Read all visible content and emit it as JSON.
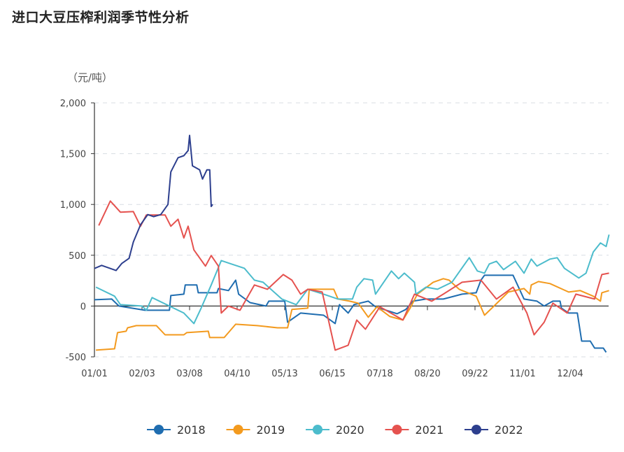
{
  "chart_data": {
    "type": "line",
    "title": "进口大豆压榨利润季节性分析",
    "ylabel": "（元/吨）",
    "xlabel": "",
    "ylim": [
      -500,
      2000
    ],
    "yticks": [
      "2,000",
      "1,500",
      "1,000",
      "500",
      "0",
      "-500"
    ],
    "ytick_values": [
      2000,
      1500,
      1000,
      500,
      0,
      -500
    ],
    "xticks": [
      "01/01",
      "02/03",
      "03/08",
      "04/10",
      "05/13",
      "06/15",
      "07/18",
      "08/20",
      "09/22",
      "11/01",
      "12/04"
    ],
    "grid": "horizontal dashed",
    "legend": "bottom",
    "series": [
      {
        "name": "2018",
        "color": "#1f6db0",
        "points": [
          [
            "01/01",
            62
          ],
          [
            "01/13",
            69
          ],
          [
            "01/18",
            0
          ],
          [
            "02/05",
            -41
          ],
          [
            "02/22",
            -41
          ],
          [
            "02/23",
            103
          ],
          [
            "03/04",
            117
          ],
          [
            "03/05",
            207
          ],
          [
            "03/13",
            207
          ],
          [
            "03/14",
            131
          ],
          [
            "03/27",
            131
          ],
          [
            "03/28",
            172
          ],
          [
            "04/04",
            152
          ],
          [
            "04/09",
            255
          ],
          [
            "04/11",
            117
          ],
          [
            "04/19",
            34
          ],
          [
            "04/30",
            0
          ],
          [
            "05/02",
            48
          ],
          [
            "05/13",
            48
          ],
          [
            "05/15",
            -159
          ],
          [
            "05/24",
            -69
          ],
          [
            "06/09",
            -90
          ],
          [
            "06/17",
            -172
          ],
          [
            "06/20",
            14
          ],
          [
            "06/26",
            -69
          ],
          [
            "06/30",
            14
          ],
          [
            "07/10",
            48
          ],
          [
            "07/15",
            -7
          ],
          [
            "07/30",
            -76
          ],
          [
            "08/05",
            -34
          ],
          [
            "08/10",
            48
          ],
          [
            "08/19",
            69
          ],
          [
            "08/31",
            69
          ],
          [
            "09/13",
            117
          ],
          [
            "09/23",
            131
          ],
          [
            "09/27",
            255
          ],
          [
            "09/30",
            303
          ],
          [
            "10/24",
            303
          ],
          [
            "11/02",
            69
          ],
          [
            "11/11",
            48
          ],
          [
            "11/16",
            0
          ],
          [
            "11/22",
            48
          ],
          [
            "11/27",
            48
          ],
          [
            "11/28",
            -21
          ],
          [
            "12/03",
            -69
          ],
          [
            "12/09",
            -69
          ],
          [
            "12/12",
            -345
          ],
          [
            "12/18",
            -345
          ],
          [
            "12/21",
            -414
          ],
          [
            "12/27",
            -414
          ],
          [
            "12/29",
            -455
          ]
        ]
      },
      {
        "name": "2019",
        "color": "#f39a1e",
        "points": [
          [
            "01/02",
            -434
          ],
          [
            "01/15",
            -421
          ],
          [
            "01/17",
            -262
          ],
          [
            "01/23",
            -248
          ],
          [
            "01/24",
            -214
          ],
          [
            "01/30",
            -193
          ],
          [
            "02/13",
            -193
          ],
          [
            "02/19",
            -283
          ],
          [
            "03/04",
            -283
          ],
          [
            "03/06",
            -262
          ],
          [
            "03/21",
            -248
          ],
          [
            "03/22",
            -310
          ],
          [
            "04/01",
            -310
          ],
          [
            "04/09",
            -179
          ],
          [
            "04/24",
            -193
          ],
          [
            "05/08",
            -214
          ],
          [
            "05/15",
            -214
          ],
          [
            "05/18",
            -34
          ],
          [
            "05/29",
            -21
          ],
          [
            "05/30",
            165
          ],
          [
            "06/16",
            165
          ],
          [
            "06/19",
            69
          ],
          [
            "06/27",
            48
          ],
          [
            "07/03",
            28
          ],
          [
            "07/10",
            -110
          ],
          [
            "07/16",
            -7
          ],
          [
            "07/25",
            -103
          ],
          [
            "08/03",
            -138
          ],
          [
            "08/08",
            -21
          ],
          [
            "08/13",
            117
          ],
          [
            "08/24",
            234
          ],
          [
            "08/31",
            269
          ],
          [
            "09/04",
            255
          ],
          [
            "09/11",
            165
          ],
          [
            "09/23",
            97
          ],
          [
            "09/30",
            -90
          ],
          [
            "10/08",
            0
          ],
          [
            "10/20",
            138
          ],
          [
            "11/02",
            172
          ],
          [
            "11/06",
            117
          ],
          [
            "11/07",
            207
          ],
          [
            "11/12",
            241
          ],
          [
            "11/20",
            221
          ],
          [
            "12/03",
            138
          ],
          [
            "12/11",
            152
          ],
          [
            "12/20",
            97
          ],
          [
            "12/25",
            48
          ],
          [
            "12/26",
            131
          ],
          [
            "12/31",
            152
          ]
        ]
      },
      {
        "name": "2020",
        "color": "#4cbccc",
        "points": [
          [
            "01/02",
            186
          ],
          [
            "01/15",
            97
          ],
          [
            "01/19",
            14
          ],
          [
            "02/03",
            0
          ],
          [
            "02/06",
            -41
          ],
          [
            "02/10",
            83
          ],
          [
            "02/22",
            0
          ],
          [
            "03/04",
            -69
          ],
          [
            "03/11",
            -172
          ],
          [
            "03/16",
            -21
          ],
          [
            "03/23",
            207
          ],
          [
            "03/30",
            448
          ],
          [
            "04/06",
            414
          ],
          [
            "04/15",
            372
          ],
          [
            "04/22",
            255
          ],
          [
            "04/28",
            234
          ],
          [
            "05/11",
            69
          ],
          [
            "05/21",
            14
          ],
          [
            "05/29",
            165
          ],
          [
            "06/09",
            117
          ],
          [
            "06/19",
            69
          ],
          [
            "06/29",
            69
          ],
          [
            "07/02",
            186
          ],
          [
            "07/07",
            269
          ],
          [
            "07/13",
            255
          ],
          [
            "07/15",
            117
          ],
          [
            "07/26",
            345
          ],
          [
            "07/31",
            269
          ],
          [
            "08/04",
            324
          ],
          [
            "08/11",
            234
          ],
          [
            "08/12",
            117
          ],
          [
            "08/19",
            186
          ],
          [
            "08/27",
            165
          ],
          [
            "09/06",
            234
          ],
          [
            "09/18",
            476
          ],
          [
            "09/24",
            345
          ],
          [
            "09/30",
            324
          ],
          [
            "10/04",
            414
          ],
          [
            "10/10",
            441
          ],
          [
            "10/16",
            359
          ],
          [
            "10/26",
            441
          ],
          [
            "11/02",
            324
          ],
          [
            "11/07",
            462
          ],
          [
            "11/11",
            393
          ],
          [
            "11/20",
            462
          ],
          [
            "11/25",
            476
          ],
          [
            "11/30",
            372
          ],
          [
            "12/10",
            276
          ],
          [
            "12/15",
            324
          ],
          [
            "12/20",
            531
          ],
          [
            "12/25",
            621
          ],
          [
            "12/29",
            586
          ],
          [
            "12/31",
            703
          ]
        ]
      },
      {
        "name": "2021",
        "color": "#e5524f",
        "points": [
          [
            "01/04",
            793
          ],
          [
            "01/12",
            1034
          ],
          [
            "01/19",
            924
          ],
          [
            "01/28",
            930
          ],
          [
            "02/02",
            786
          ],
          [
            "02/06",
            897
          ],
          [
            "02/19",
            897
          ],
          [
            "02/23",
            786
          ],
          [
            "02/28",
            855
          ],
          [
            "03/04",
            670
          ],
          [
            "03/07",
            786
          ],
          [
            "03/11",
            552
          ],
          [
            "03/19",
            393
          ],
          [
            "03/23",
            497
          ],
          [
            "03/28",
            393
          ],
          [
            "03/30",
            -69
          ],
          [
            "04/04",
            0
          ],
          [
            "04/12",
            -41
          ],
          [
            "04/22",
            207
          ],
          [
            "05/01",
            165
          ],
          [
            "05/12",
            310
          ],
          [
            "05/18",
            255
          ],
          [
            "05/24",
            117
          ],
          [
            "05/29",
            165
          ],
          [
            "06/08",
            138
          ],
          [
            "06/17",
            -434
          ],
          [
            "06/26",
            -386
          ],
          [
            "07/02",
            -138
          ],
          [
            "07/08",
            -228
          ],
          [
            "07/18",
            -7
          ],
          [
            "08/03",
            -138
          ],
          [
            "08/11",
            117
          ],
          [
            "08/23",
            48
          ],
          [
            "08/31",
            117
          ],
          [
            "09/13",
            234
          ],
          [
            "09/27",
            255
          ],
          [
            "10/10",
            69
          ],
          [
            "10/24",
            186
          ],
          [
            "11/04",
            -69
          ],
          [
            "11/09",
            -283
          ],
          [
            "11/16",
            -159
          ],
          [
            "11/22",
            28
          ],
          [
            "12/02",
            -69
          ],
          [
            "12/08",
            117
          ],
          [
            "12/21",
            69
          ],
          [
            "12/26",
            310
          ],
          [
            "12/31",
            324
          ]
        ]
      },
      {
        "name": "2022",
        "color": "#2d3f8e",
        "points": [
          [
            "01/01",
            370
          ],
          [
            "01/06",
            400
          ],
          [
            "01/16",
            350
          ],
          [
            "01/20",
            420
          ],
          [
            "01/25",
            470
          ],
          [
            "01/28",
            630
          ],
          [
            "02/02",
            800
          ],
          [
            "02/07",
            900
          ],
          [
            "02/11",
            880
          ],
          [
            "02/16",
            900
          ],
          [
            "02/21",
            1000
          ],
          [
            "02/23",
            1320
          ],
          [
            "02/28",
            1460
          ],
          [
            "03/04",
            1480
          ],
          [
            "03/07",
            1530
          ],
          [
            "03/08",
            1680
          ],
          [
            "03/10",
            1380
          ],
          [
            "03/15",
            1340
          ],
          [
            "03/17",
            1250
          ],
          [
            "03/20",
            1340
          ],
          [
            "03/22",
            1340
          ],
          [
            "03/23",
            980
          ],
          [
            "03/24",
            1000
          ]
        ]
      }
    ]
  }
}
